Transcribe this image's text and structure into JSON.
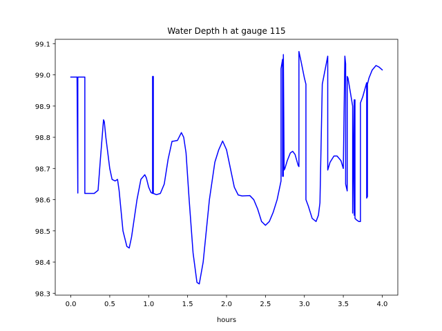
{
  "chart_data": {
    "type": "line",
    "title": "Water Depth h at gauge 115",
    "xlabel": "hours",
    "ylabel": "",
    "xlim": [
      -0.2,
      4.2
    ],
    "ylim": [
      98.294,
      99.114
    ],
    "xticks": [
      0.0,
      0.5,
      1.0,
      1.5,
      2.0,
      2.5,
      3.0,
      3.5,
      4.0
    ],
    "xtick_labels": [
      "0.0",
      "0.5",
      "1.0",
      "1.5",
      "2.0",
      "2.5",
      "3.0",
      "3.5",
      "4.0"
    ],
    "yticks": [
      98.3,
      98.4,
      98.5,
      98.6,
      98.7,
      98.8,
      98.9,
      99.0,
      99.1
    ],
    "ytick_labels": [
      "98.3",
      "98.4",
      "98.5",
      "98.6",
      "98.7",
      "98.8",
      "98.9",
      "99.0",
      "99.1"
    ],
    "grid": false,
    "legend": "none",
    "series_color": "#0000ff",
    "series": [
      {
        "x": [
          0.0,
          0.08,
          0.08,
          0.09,
          0.09,
          0.1,
          0.17,
          0.18,
          0.18,
          0.3,
          0.35,
          0.38,
          0.42,
          0.43,
          0.45,
          0.5,
          0.53,
          0.57,
          0.6,
          0.62,
          0.67,
          0.72,
          0.75,
          0.78,
          0.85,
          0.9,
          0.95,
          0.97,
          1.0,
          1.03,
          1.05,
          1.05,
          1.06,
          1.06,
          1.1,
          1.15,
          1.2,
          1.25,
          1.3,
          1.33,
          1.37,
          1.42,
          1.45,
          1.48,
          1.52,
          1.57,
          1.62,
          1.65,
          1.7,
          1.78,
          1.85,
          1.9,
          1.95,
          2.0,
          2.05,
          2.1,
          2.15,
          2.2,
          2.3,
          2.35,
          2.4,
          2.45,
          2.5,
          2.55,
          2.6,
          2.65,
          2.7,
          2.7,
          2.72,
          2.72,
          2.73,
          2.73,
          2.74,
          2.75,
          2.78,
          2.82,
          2.85,
          2.88,
          2.92,
          2.93,
          2.93,
          2.96,
          3.0,
          3.02,
          3.02,
          3.05,
          3.1,
          3.15,
          3.18,
          3.2,
          3.23,
          3.23,
          3.3,
          3.3,
          3.33,
          3.38,
          3.42,
          3.47,
          3.5,
          3.5,
          3.52,
          3.53,
          3.53,
          3.55,
          3.55,
          3.56,
          3.58,
          3.6,
          3.62,
          3.62,
          3.64,
          3.64,
          3.65,
          3.65,
          3.67,
          3.7,
          3.72,
          3.72,
          3.75,
          3.8,
          3.8,
          3.81,
          3.81,
          3.83,
          3.87,
          3.92,
          3.96,
          4.0
        ],
        "y": [
          98.993,
          98.993,
          98.993,
          98.621,
          98.993,
          98.993,
          98.993,
          98.993,
          98.62,
          98.62,
          98.63,
          98.73,
          98.856,
          98.85,
          98.8,
          98.7,
          98.665,
          98.66,
          98.665,
          98.63,
          98.5,
          98.45,
          98.445,
          98.48,
          98.6,
          98.665,
          98.68,
          98.67,
          98.64,
          98.623,
          98.62,
          98.995,
          98.995,
          98.62,
          98.616,
          98.62,
          98.65,
          98.73,
          98.787,
          98.788,
          98.79,
          98.815,
          98.8,
          98.75,
          98.6,
          98.43,
          98.335,
          98.33,
          98.4,
          98.6,
          98.72,
          98.76,
          98.788,
          98.76,
          98.7,
          98.64,
          98.615,
          98.612,
          98.613,
          98.6,
          98.57,
          98.53,
          98.518,
          98.53,
          98.56,
          98.6,
          98.66,
          99.02,
          99.05,
          98.675,
          98.675,
          99.065,
          98.695,
          98.7,
          98.725,
          98.75,
          98.755,
          98.745,
          98.71,
          98.706,
          99.075,
          99.04,
          98.99,
          98.97,
          98.6,
          98.58,
          98.54,
          98.53,
          98.55,
          98.59,
          98.97,
          98.97,
          99.06,
          98.695,
          98.72,
          98.74,
          98.74,
          98.725,
          98.7,
          98.7,
          99.06,
          99.035,
          98.65,
          98.628,
          98.995,
          98.99,
          98.96,
          98.93,
          98.9,
          98.557,
          98.92,
          98.55,
          98.92,
          98.54,
          98.535,
          98.53,
          98.53,
          98.91,
          98.93,
          98.975,
          98.605,
          98.61,
          98.97,
          98.99,
          99.015,
          99.03,
          99.025,
          99.016
        ]
      }
    ]
  }
}
